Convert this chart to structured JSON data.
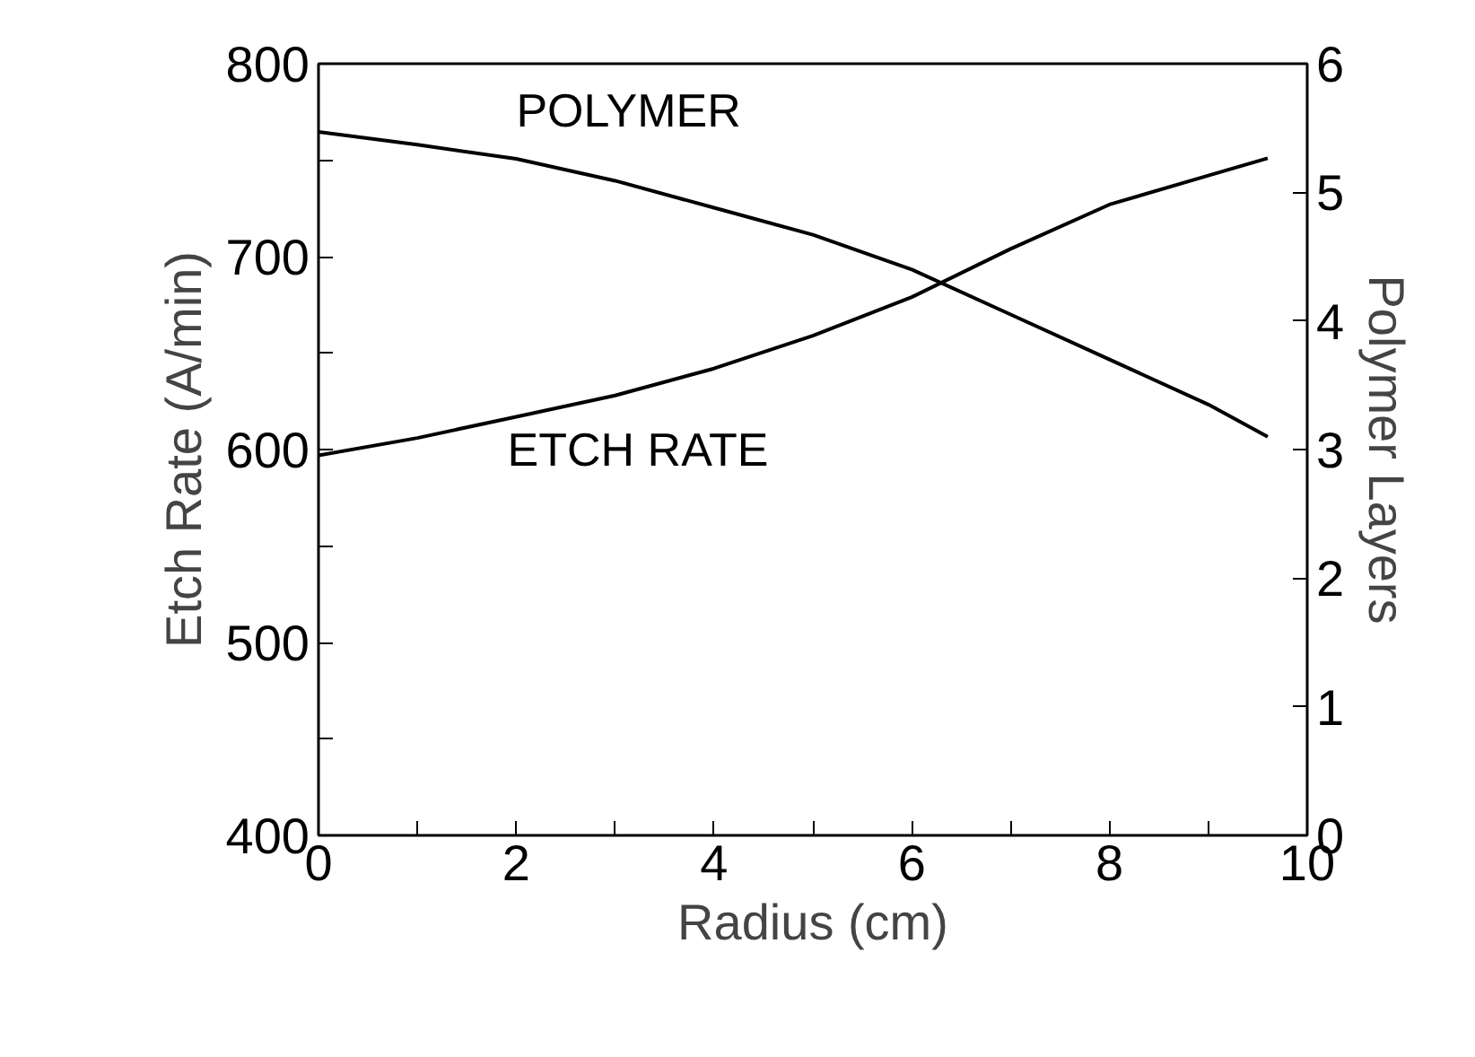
{
  "chart_data": {
    "type": "line",
    "xlabel": "Radius (cm)",
    "ylabel": "Etch Rate (A/min)",
    "y2label": "Polymer Layers",
    "xlim": [
      0,
      10
    ],
    "xticks": [
      0,
      {
        "value": 1,
        "label": null
      },
      2,
      {
        "value": 3,
        "label": null
      },
      4,
      {
        "value": 5,
        "label": null
      },
      6,
      {
        "value": 7,
        "label": null
      },
      8,
      {
        "value": 9,
        "label": null
      },
      10
    ],
    "ylim": [
      400,
      800
    ],
    "yticks": [
      400,
      {
        "value": 450,
        "label": null
      },
      500,
      {
        "value": 550,
        "label": null
      },
      600,
      {
        "value": 650,
        "label": null
      },
      700,
      {
        "value": 750,
        "label": null
      },
      800
    ],
    "y2lim": [
      0,
      6
    ],
    "y2ticks": [
      0,
      1,
      2,
      3,
      4,
      5,
      6
    ],
    "grid": false,
    "legend": false,
    "marker": "none",
    "line_style": "solid",
    "series": [
      {
        "name": "POLYMER",
        "color": "#000000",
        "axis": "y2",
        "x": [
          0,
          1,
          2,
          3,
          4,
          5,
          6,
          7,
          8,
          9,
          9.6
        ],
        "values": [
          5.47,
          5.37,
          5.26,
          5.09,
          4.88,
          4.67,
          4.4,
          4.05,
          3.7,
          3.35,
          3.1
        ]
      },
      {
        "name": "ETCH RATE",
        "color": "#000000",
        "x": [
          0,
          1,
          2,
          3,
          4,
          5,
          6,
          7,
          8,
          9,
          9.6
        ],
        "values": [
          597,
          606,
          617,
          628,
          642,
          659,
          679,
          704,
          727,
          742,
          751
        ]
      }
    ]
  }
}
